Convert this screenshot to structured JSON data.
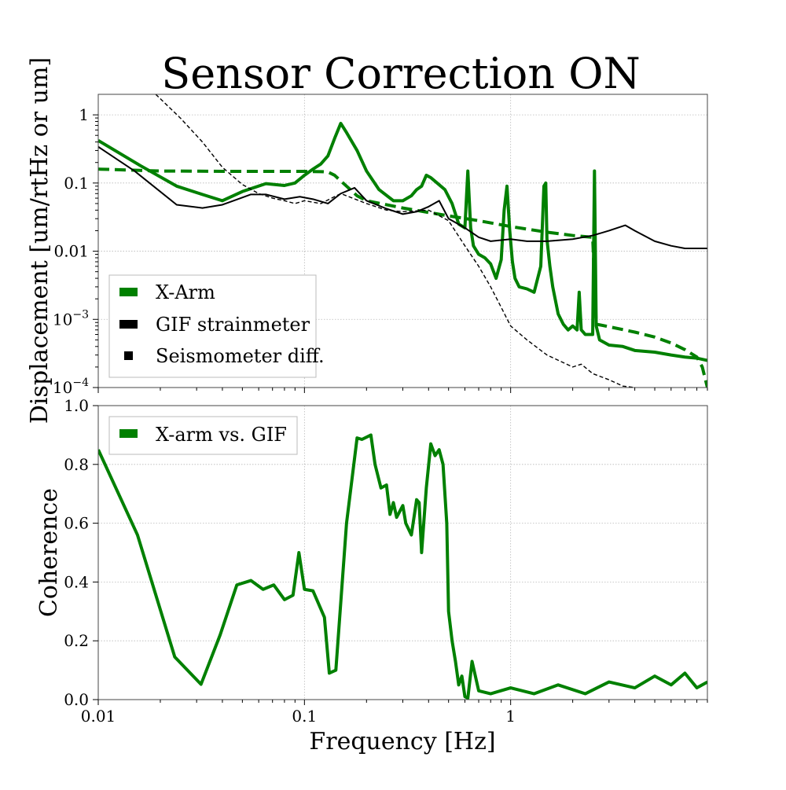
{
  "chart_data": [
    {
      "type": "line",
      "title": "Sensor Correction ON",
      "xlabel": "",
      "ylabel": "Displacement [um/rtHz or um]",
      "xscale": "log",
      "yscale": "log",
      "xlim": [
        0.01,
        9
      ],
      "ylim": [
        0.0001,
        2
      ],
      "grid": true,
      "legend_position": "lower-left",
      "x_ticks": [
        {
          "value": 0.01,
          "label": "0.01"
        },
        {
          "value": 0.1,
          "label": "0.1"
        },
        {
          "value": 1,
          "label": "1"
        }
      ],
      "y_ticks": [
        {
          "value": 1,
          "label": "1"
        },
        {
          "value": 0.1,
          "label": "0.1"
        },
        {
          "value": 0.01,
          "label": "0.01"
        },
        {
          "value": 0.001,
          "label": "10^{-3}"
        },
        {
          "value": 0.0001,
          "label": "10^{-4}"
        }
      ],
      "series": [
        {
          "name": "X-Arm",
          "color": "#008000",
          "style": "solid",
          "x": [
            0.01,
            0.016,
            0.024,
            0.032,
            0.04,
            0.05,
            0.065,
            0.08,
            0.09,
            0.1,
            0.11,
            0.12,
            0.13,
            0.14,
            0.15,
            0.16,
            0.18,
            0.2,
            0.23,
            0.27,
            0.3,
            0.33,
            0.35,
            0.37,
            0.39,
            0.41,
            0.44,
            0.48,
            0.52,
            0.56,
            0.6,
            0.62,
            0.64,
            0.66,
            0.7,
            0.75,
            0.8,
            0.85,
            0.9,
            0.93,
            0.96,
            0.99,
            1.02,
            1.05,
            1.1,
            1.2,
            1.3,
            1.4,
            1.45,
            1.48,
            1.5,
            1.55,
            1.6,
            1.7,
            1.8,
            1.9,
            2.0,
            2.1,
            2.15,
            2.2,
            2.25,
            2.3,
            2.4,
            2.5,
            2.55,
            2.6,
            2.7,
            3.0,
            3.5,
            4.0,
            5.0,
            6.0,
            7.0,
            8.0,
            9.0
          ],
          "values": [
            0.42,
            0.18,
            0.09,
            0.068,
            0.055,
            0.075,
            0.098,
            0.092,
            0.1,
            0.13,
            0.16,
            0.19,
            0.25,
            0.45,
            0.75,
            0.55,
            0.3,
            0.15,
            0.08,
            0.055,
            0.055,
            0.065,
            0.08,
            0.09,
            0.13,
            0.12,
            0.1,
            0.08,
            0.05,
            0.025,
            0.022,
            0.15,
            0.022,
            0.012,
            0.009,
            0.008,
            0.0065,
            0.004,
            0.0075,
            0.04,
            0.09,
            0.02,
            0.007,
            0.004,
            0.003,
            0.0028,
            0.0025,
            0.006,
            0.09,
            0.1,
            0.015,
            0.006,
            0.003,
            0.0012,
            0.00085,
            0.0007,
            0.0008,
            0.0007,
            0.0025,
            0.0007,
            0.00065,
            0.0006,
            0.0006,
            0.0006,
            0.15,
            0.0008,
            0.0005,
            0.00042,
            0.0004,
            0.00035,
            0.00033,
            0.0003,
            0.00028,
            0.00027,
            0.00025
          ]
        },
        {
          "name": "",
          "color": "#008000",
          "style": "dashed",
          "x": [
            0.01,
            0.02,
            0.05,
            0.1,
            0.12,
            0.13,
            0.14,
            0.16,
            0.18,
            0.2,
            0.25,
            0.3,
            0.4,
            0.5,
            0.7,
            1.0,
            1.5,
            2.0,
            2.5,
            2.6,
            3.0,
            4.0,
            5.0,
            6.0,
            7.0,
            8.0,
            8.5,
            9.0
          ],
          "values": [
            0.16,
            0.15,
            0.148,
            0.148,
            0.147,
            0.145,
            0.13,
            0.09,
            0.065,
            0.055,
            0.048,
            0.043,
            0.037,
            0.033,
            0.028,
            0.023,
            0.019,
            0.017,
            0.016,
            0.00085,
            0.00078,
            0.00065,
            0.00055,
            0.00045,
            0.00036,
            0.00028,
            0.0002,
            0.0001
          ]
        },
        {
          "name": "GIF strainmeter",
          "color": "#000000",
          "style": "solid",
          "x": [
            0.01,
            0.015,
            0.024,
            0.032,
            0.04,
            0.055,
            0.065,
            0.08,
            0.095,
            0.11,
            0.13,
            0.15,
            0.175,
            0.2,
            0.25,
            0.3,
            0.35,
            0.4,
            0.45,
            0.5,
            0.6,
            0.7,
            0.8,
            1.0,
            1.2,
            1.5,
            2.0,
            2.5,
            3.0,
            3.3,
            3.6,
            4.0,
            5.0,
            6.0,
            7.0,
            8.0,
            9.0
          ],
          "values": [
            0.34,
            0.15,
            0.048,
            0.043,
            0.048,
            0.068,
            0.068,
            0.058,
            0.063,
            0.058,
            0.05,
            0.07,
            0.085,
            0.055,
            0.042,
            0.035,
            0.038,
            0.045,
            0.055,
            0.03,
            0.022,
            0.016,
            0.014,
            0.015,
            0.014,
            0.014,
            0.015,
            0.017,
            0.02,
            0.022,
            0.024,
            0.02,
            0.014,
            0.012,
            0.011,
            0.011,
            0.011
          ]
        },
        {
          "name": "Seismometer diff.",
          "color": "#000000",
          "style": "dashed",
          "x": [
            0.019,
            0.025,
            0.032,
            0.04,
            0.05,
            0.06,
            0.07,
            0.08,
            0.09,
            0.1,
            0.12,
            0.15,
            0.2,
            0.25,
            0.3,
            0.4,
            0.5,
            0.6,
            0.7,
            0.8,
            0.9,
            1.0,
            1.2,
            1.5,
            2.0,
            2.2,
            2.5,
            3.0,
            3.5,
            4.0
          ],
          "values": [
            2.0,
            0.9,
            0.4,
            0.17,
            0.095,
            0.07,
            0.06,
            0.055,
            0.05,
            0.055,
            0.05,
            0.07,
            0.05,
            0.04,
            0.038,
            0.04,
            0.028,
            0.012,
            0.006,
            0.003,
            0.0015,
            0.0008,
            0.0005,
            0.0003,
            0.0002,
            0.00022,
            0.00016,
            0.00013,
            0.000105,
            0.0001
          ]
        }
      ]
    },
    {
      "type": "line",
      "title": "",
      "xlabel": "Frequency [Hz]",
      "ylabel": "Coherence",
      "xscale": "log",
      "xlim": [
        0.01,
        9
      ],
      "ylim": [
        0.0,
        1.0
      ],
      "grid": true,
      "legend_position": "top-left",
      "x_ticks": [
        {
          "value": 0.01,
          "label": "0.01"
        },
        {
          "value": 0.1,
          "label": "0.1"
        },
        {
          "value": 1,
          "label": "1"
        }
      ],
      "y_ticks": [
        {
          "value": 0.0,
          "label": "0.0"
        },
        {
          "value": 0.2,
          "label": "0.2"
        },
        {
          "value": 0.4,
          "label": "0.4"
        },
        {
          "value": 0.6,
          "label": "0.6"
        },
        {
          "value": 0.8,
          "label": "0.8"
        },
        {
          "value": 1.0,
          "label": "1.0"
        }
      ],
      "series": [
        {
          "name": "X-arm vs. GIF",
          "color": "#008000",
          "style": "solid",
          "x": [
            0.01,
            0.0155,
            0.0235,
            0.0315,
            0.039,
            0.047,
            0.055,
            0.063,
            0.071,
            0.08,
            0.088,
            0.094,
            0.1,
            0.11,
            0.125,
            0.132,
            0.142,
            0.16,
            0.18,
            0.19,
            0.21,
            0.22,
            0.235,
            0.25,
            0.26,
            0.27,
            0.28,
            0.3,
            0.31,
            0.33,
            0.35,
            0.36,
            0.37,
            0.39,
            0.41,
            0.43,
            0.45,
            0.47,
            0.49,
            0.5,
            0.52,
            0.54,
            0.56,
            0.58,
            0.6,
            0.62,
            0.65,
            0.7,
            0.8,
            1.0,
            1.3,
            1.7,
            2.3,
            3.0,
            4.0,
            5.0,
            6.0,
            7.0,
            8.0,
            9.0
          ],
          "values": [
            0.85,
            0.56,
            0.145,
            0.052,
            0.22,
            0.39,
            0.405,
            0.375,
            0.39,
            0.34,
            0.355,
            0.5,
            0.375,
            0.37,
            0.28,
            0.09,
            0.1,
            0.6,
            0.89,
            0.885,
            0.9,
            0.8,
            0.72,
            0.73,
            0.63,
            0.67,
            0.62,
            0.66,
            0.6,
            0.56,
            0.68,
            0.67,
            0.5,
            0.72,
            0.87,
            0.83,
            0.85,
            0.8,
            0.6,
            0.3,
            0.2,
            0.13,
            0.05,
            0.08,
            0.01,
            0.005,
            0.13,
            0.03,
            0.02,
            0.04,
            0.02,
            0.05,
            0.02,
            0.06,
            0.04,
            0.08,
            0.05,
            0.09,
            0.04,
            0.06
          ]
        }
      ]
    }
  ]
}
